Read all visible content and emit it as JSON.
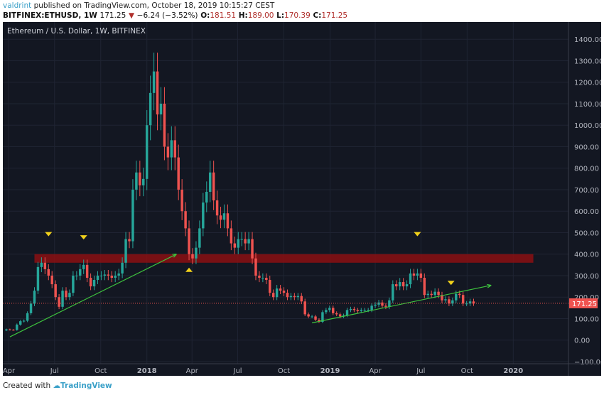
{
  "header": {
    "user": "valdrint",
    "published": "published on TradingView.com, October 18, 2019 10:15:27 CEST",
    "symbol": "BITFINEX:ETHUSD, 1W",
    "last": "171.25",
    "change": "−6.24 (−3.52%)",
    "o_label": "O:",
    "o": "181.51",
    "h_label": "H:",
    "h": "189.00",
    "l_label": "L:",
    "l": "170.39",
    "c_label": "C:",
    "c": "171.25"
  },
  "footer": {
    "created": "Created with",
    "brand": "TradingView"
  },
  "chart_data": {
    "type": "candlestick",
    "title": "Ethereum / U.S. Dollar, 1W, BITFINEX",
    "ylim": [
      -110,
      1480
    ],
    "yticks": [
      -100,
      0,
      100,
      200,
      300,
      400,
      500,
      600,
      700,
      800,
      900,
      1000,
      1100,
      1200,
      1300,
      1400
    ],
    "xticks": [
      {
        "label": "Apr",
        "date": "2017-04-01"
      },
      {
        "label": "Jul",
        "date": "2017-07-01"
      },
      {
        "label": "Oct",
        "date": "2017-10-01"
      },
      {
        "label": "2018",
        "date": "2018-01-01"
      },
      {
        "label": "Apr",
        "date": "2018-04-01"
      },
      {
        "label": "Jul",
        "date": "2018-07-01"
      },
      {
        "label": "Oct",
        "date": "2018-10-01"
      },
      {
        "label": "2019",
        "date": "2019-01-01"
      },
      {
        "label": "Apr",
        "date": "2019-04-01"
      },
      {
        "label": "Jul",
        "date": "2019-07-01"
      },
      {
        "label": "Oct",
        "date": "2019-10-01"
      },
      {
        "label": "2020",
        "date": "2020-01-01"
      }
    ],
    "xlim": [
      "2017-03-20",
      "2020-04-20"
    ],
    "last_week": "2019-10-14",
    "first_open": 45,
    "closes": [
      50,
      48,
      47,
      72,
      88,
      90,
      125,
      170,
      230,
      340,
      360,
      330,
      300,
      260,
      200,
      155,
      230,
      200,
      220,
      300,
      300,
      330,
      350,
      290,
      250,
      280,
      300,
      300,
      305,
      300,
      290,
      300,
      310,
      360,
      470,
      460,
      700,
      780,
      720,
      750,
      1000,
      1150,
      1250,
      1050,
      1100,
      900,
      850,
      930,
      850,
      700,
      600,
      520,
      400,
      380,
      430,
      520,
      640,
      690,
      780,
      650,
      580,
      560,
      590,
      520,
      450,
      430,
      470,
      470,
      450,
      470,
      380,
      300,
      290,
      290,
      280,
      220,
      200,
      240,
      230,
      220,
      200,
      205,
      200,
      205,
      180,
      120,
      110,
      110,
      95,
      85,
      130,
      140,
      150,
      125,
      120,
      110,
      115,
      140,
      145,
      140,
      135,
      140,
      140,
      140,
      160,
      165,
      175,
      160,
      155,
      185,
      260,
      250,
      270,
      250,
      260,
      310,
      300,
      310,
      290,
      210,
      215,
      210,
      225,
      210,
      185,
      190,
      170,
      185,
      215,
      210,
      170,
      170,
      180,
      171.25
    ],
    "last_price": 171.25,
    "last_price_label": "171.25",
    "resistance_zone": {
      "from": "2017-05-22",
      "to": "2020-02-10",
      "low": 360,
      "high": 400
    },
    "trendlines": [
      {
        "from": [
          "2017-04-03",
          15
        ],
        "to": [
          "2018-03-01",
          400
        ]
      },
      {
        "from": [
          "2018-11-26",
          80
        ],
        "to": [
          "2019-11-18",
          255
        ]
      }
    ],
    "markers": [
      {
        "date": "2017-06-19",
        "price": 493,
        "dir": "down"
      },
      {
        "date": "2017-08-28",
        "price": 478,
        "dir": "down"
      },
      {
        "date": "2018-03-26",
        "price": 327,
        "dir": "up"
      },
      {
        "date": "2019-06-24",
        "price": 493,
        "dir": "down"
      },
      {
        "date": "2019-08-30",
        "price": 266,
        "dir": "down"
      }
    ],
    "colors": {
      "background": "#131722",
      "up": "#26a69a",
      "down": "#ef5350",
      "grid": "#1f2433",
      "zone": "#8b0f12",
      "trendline": "#3ec43e",
      "marker": "#f2d21b"
    }
  }
}
